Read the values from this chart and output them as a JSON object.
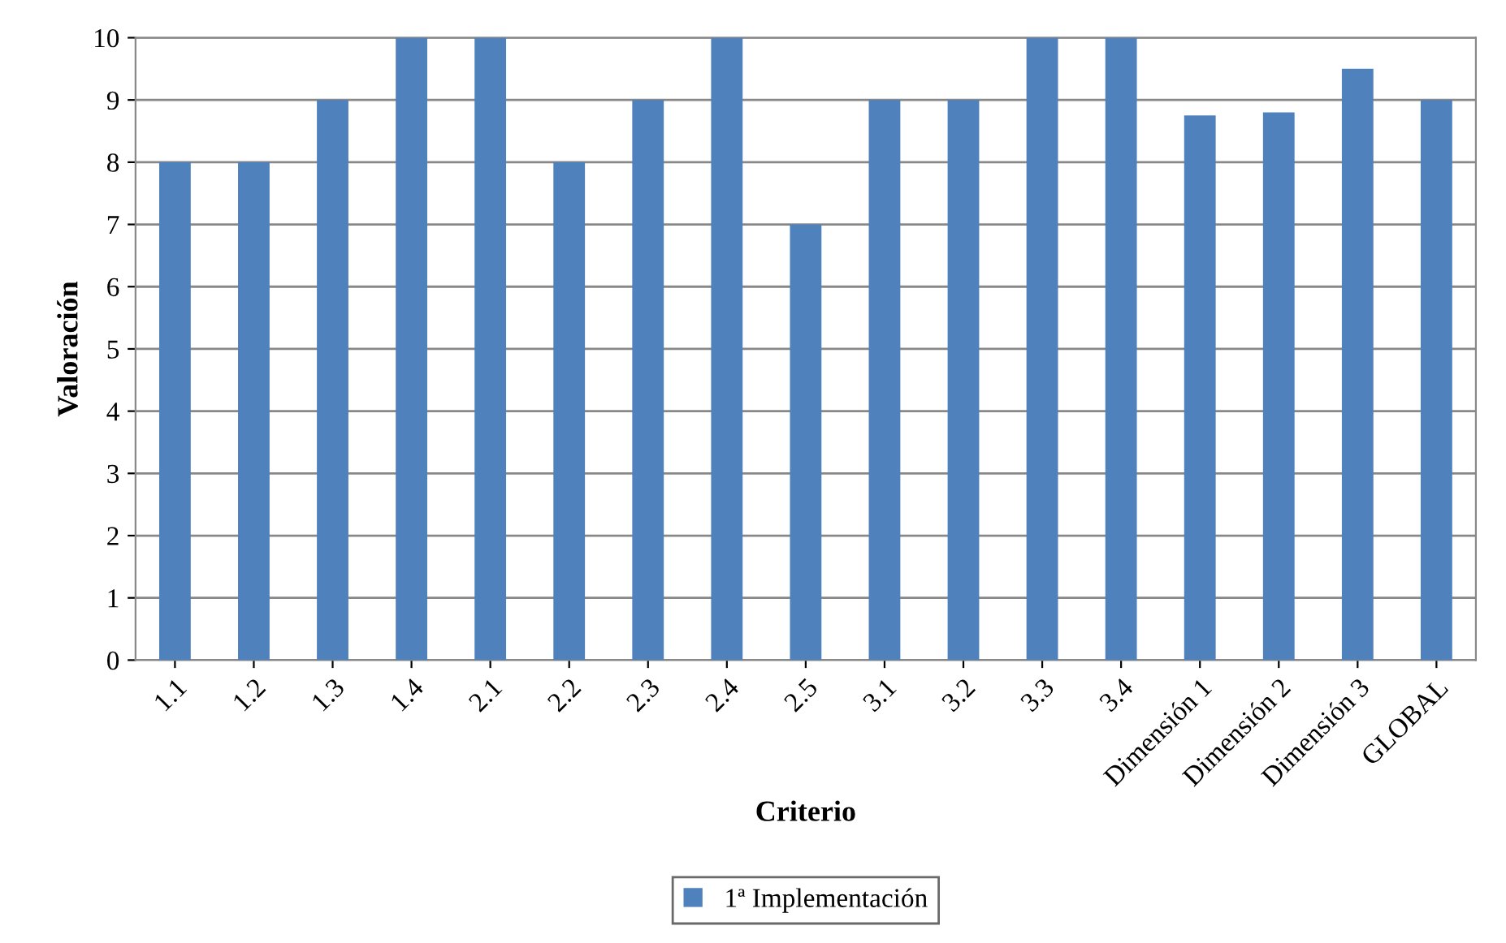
{
  "chart_data": {
    "type": "bar",
    "xlabel": "Criterio",
    "ylabel": "Valoración",
    "categories": [
      "1.1",
      "1.2",
      "1.3",
      "1.4",
      "2.1",
      "2.2",
      "2.3",
      "2.4",
      "2.5",
      "3.1",
      "3.2",
      "3.3",
      "3.4",
      "Dimensión 1",
      "Dimensión 2",
      "Dimensión 3",
      "GLOBAL"
    ],
    "series": [
      {
        "name": "1ª Implementación",
        "color": "#4f81bd",
        "values": [
          8,
          8,
          9,
          10,
          10,
          8,
          9,
          10,
          7,
          9,
          9,
          10,
          10,
          8.75,
          8.8,
          9.5,
          9
        ]
      }
    ],
    "ylim": [
      0,
      10
    ],
    "yticks": [
      0,
      1,
      2,
      3,
      4,
      5,
      6,
      7,
      8,
      9,
      10
    ],
    "grid": "y",
    "legend": "bottom"
  }
}
